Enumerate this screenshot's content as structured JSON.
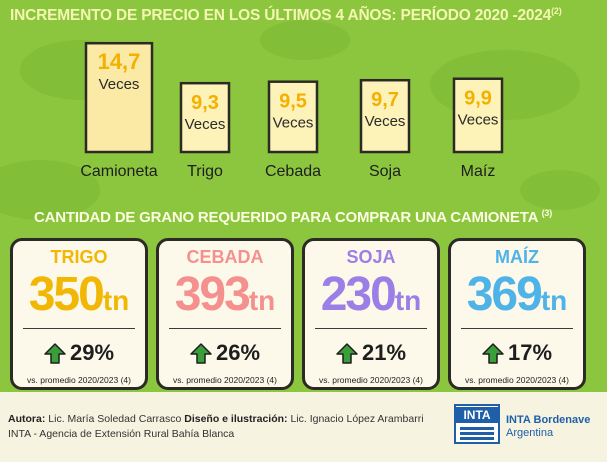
{
  "chart_data": [
    {
      "type": "bar",
      "title": "INCREMENTO DE PRECIO EN LOS ÚLTIMOS 4 AÑOS:  PERÍODO 2020 -2024",
      "title_ref": "(2)",
      "categories": [
        "Camioneta",
        "Trigo",
        "Cebada",
        "Soja",
        "Maíz"
      ],
      "values": [
        14.7,
        9.3,
        9.5,
        9.7,
        9.9
      ],
      "value_labels": [
        "14,7",
        "9,3",
        "9,5",
        "9,7",
        "9,9"
      ],
      "value_unit": "Veces",
      "colors": {
        "bar_fill": "#fdf2b8",
        "highlight_fill": "#fbe9a6",
        "value_text": "#f4b000",
        "bar_border": "#2c2a25"
      }
    },
    {
      "type": "table",
      "title": "CANTIDAD DE GRANO REQUERIDO PARA COMPRAR UNA CAMIONETA",
      "title_ref": "(3)",
      "items": [
        {
          "name": "TRIGO",
          "tons": "350",
          "unit": "tn",
          "change": "29%",
          "direction": "up",
          "note": "vs. promedio 2020/2023 (4)",
          "color": "#f2b705"
        },
        {
          "name": "CEBADA",
          "tons": "393",
          "unit": "tn",
          "change": "26%",
          "direction": "up",
          "note": "vs. promedio 2020/2023 (4)",
          "color": "#f4918f"
        },
        {
          "name": "SOJA",
          "tons": "230",
          "unit": "tn",
          "change": "21%",
          "direction": "up",
          "note": "vs. promedio 2020/2023 (4)",
          "color": "#9b7fe6"
        },
        {
          "name": "MAÍZ",
          "tons": "369",
          "unit": "tn",
          "change": "17%",
          "direction": "up",
          "note": "vs. promedio 2020/2023 (4)",
          "color": "#4fb3e8"
        }
      ],
      "arrow_color": "#3a9e3a"
    }
  ],
  "footer": {
    "author_label": "Autora:",
    "author_name": "Lic. María Soledad Carrasco",
    "design_label": "Diseño e ilustración:",
    "design_name": "Lic. Ignacio López Arambarri",
    "agency": "INTA - Agencia de Extensión Rural Bahía Blanca"
  },
  "logo": {
    "word": "INTA",
    "line1": "INTA Bordenave",
    "line2": "Argentina"
  }
}
